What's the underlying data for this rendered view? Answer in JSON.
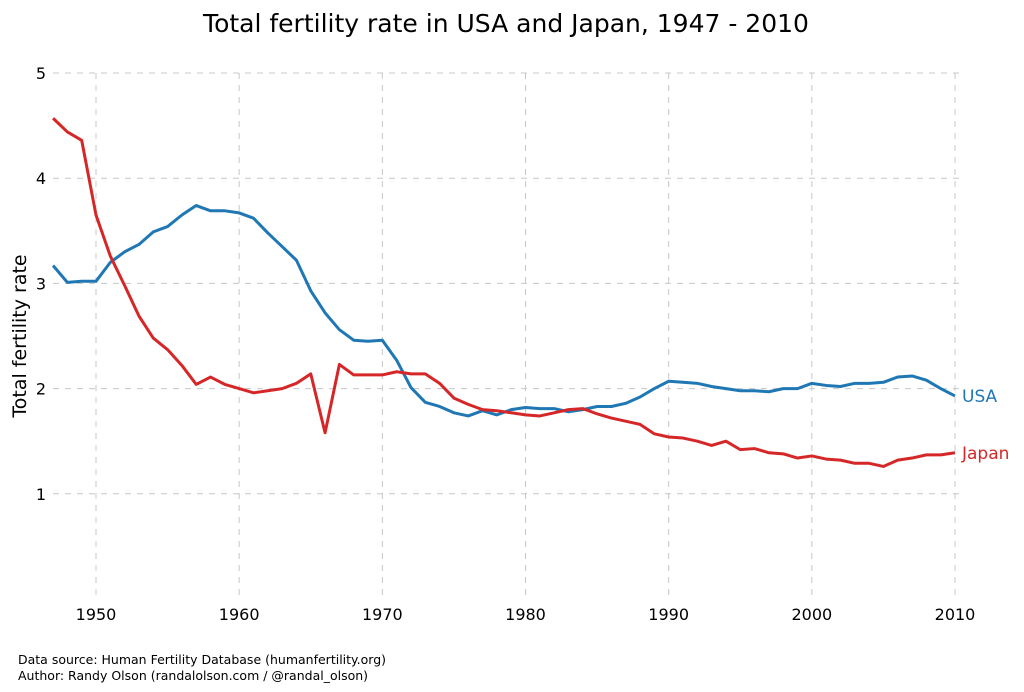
{
  "chart_data": {
    "type": "line",
    "title": "Total fertility rate in USA and Japan, 1947 - 2010",
    "xlabel": "",
    "ylabel": "Total fertility rate",
    "xlim": [
      1947,
      2010
    ],
    "ylim": [
      0,
      5
    ],
    "xticks": [
      1950,
      1960,
      1970,
      1980,
      1990,
      2000,
      2010
    ],
    "yticks": [
      1,
      2,
      3,
      4,
      5
    ],
    "grid": true,
    "legend": "inline labels at line ends",
    "x": [
      1947,
      1948,
      1949,
      1950,
      1951,
      1952,
      1953,
      1954,
      1955,
      1956,
      1957,
      1958,
      1959,
      1960,
      1961,
      1962,
      1963,
      1964,
      1965,
      1966,
      1967,
      1968,
      1969,
      1970,
      1971,
      1972,
      1973,
      1974,
      1975,
      1976,
      1977,
      1978,
      1979,
      1980,
      1981,
      1982,
      1983,
      1984,
      1985,
      1986,
      1987,
      1988,
      1989,
      1990,
      1991,
      1992,
      1993,
      1994,
      1995,
      1996,
      1997,
      1998,
      1999,
      2000,
      2001,
      2002,
      2003,
      2004,
      2005,
      2006,
      2007,
      2008,
      2009,
      2010
    ],
    "series": [
      {
        "name": "USA",
        "color": "#1f77b4",
        "values": [
          3.17,
          3.01,
          3.02,
          3.02,
          3.2,
          3.3,
          3.37,
          3.49,
          3.54,
          3.65,
          3.74,
          3.69,
          3.69,
          3.67,
          3.62,
          3.48,
          3.35,
          3.22,
          2.93,
          2.72,
          2.56,
          2.46,
          2.45,
          2.46,
          2.27,
          2.01,
          1.87,
          1.83,
          1.77,
          1.74,
          1.79,
          1.75,
          1.8,
          1.82,
          1.81,
          1.81,
          1.78,
          1.8,
          1.83,
          1.83,
          1.86,
          1.92,
          2.0,
          2.07,
          2.06,
          2.05,
          2.02,
          2.0,
          1.98,
          1.98,
          1.97,
          2.0,
          2.0,
          2.05,
          2.03,
          2.02,
          2.05,
          2.05,
          2.06,
          2.11,
          2.12,
          2.08,
          2.0,
          1.93
        ]
      },
      {
        "name": "Japan",
        "color": "#d62728",
        "values": [
          4.57,
          4.44,
          4.36,
          3.65,
          3.26,
          2.98,
          2.69,
          2.48,
          2.37,
          2.22,
          2.04,
          2.11,
          2.04,
          2.0,
          1.96,
          1.98,
          2.0,
          2.05,
          2.14,
          1.58,
          2.23,
          2.13,
          2.13,
          2.13,
          2.16,
          2.14,
          2.14,
          2.05,
          1.91,
          1.85,
          1.8,
          1.79,
          1.77,
          1.75,
          1.74,
          1.77,
          1.8,
          1.81,
          1.76,
          1.72,
          1.69,
          1.66,
          1.57,
          1.54,
          1.53,
          1.5,
          1.46,
          1.5,
          1.42,
          1.43,
          1.39,
          1.38,
          1.34,
          1.36,
          1.33,
          1.32,
          1.29,
          1.29,
          1.26,
          1.32,
          1.34,
          1.37,
          1.37,
          1.39
        ]
      }
    ]
  },
  "footer": {
    "source": "Data source: Human Fertility Database (humanfertility.org)",
    "author": "Author: Randy Olson (randalolson.com / @randal_olson)"
  }
}
